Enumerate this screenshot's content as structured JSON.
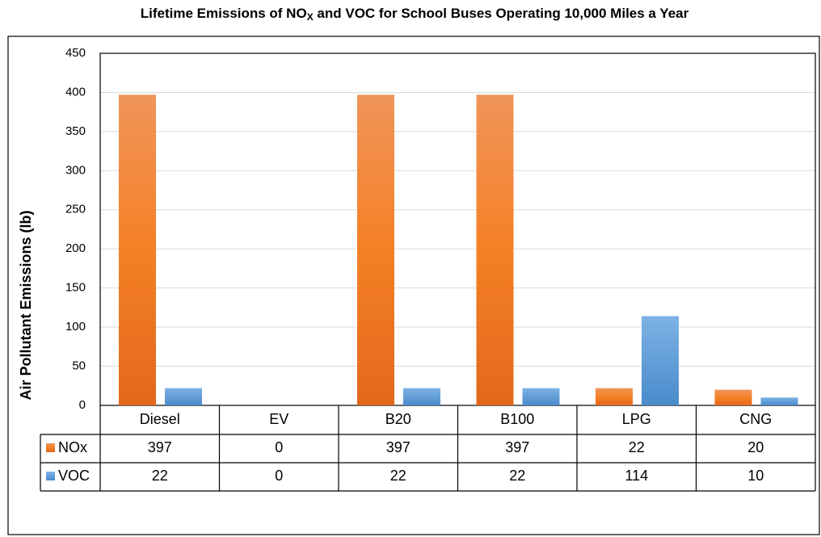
{
  "chart_data": {
    "type": "bar",
    "title": [
      "Lifetime Emissions of NO",
      "X",
      " and VOC for School Buses Operating 10,000 Miles a Year"
    ],
    "y_label": "Air Pollutant Emissions (lb)",
    "categories": [
      "Diesel",
      "EV",
      "B20",
      "B100",
      "LPG",
      "CNG"
    ],
    "series": [
      {
        "name": "NOx",
        "color": "#f07f2a",
        "values": [
          397,
          0,
          397,
          397,
          22,
          20
        ]
      },
      {
        "name": "VOC",
        "color": "#5b9bd5",
        "values": [
          22,
          0,
          22,
          22,
          114,
          10
        ]
      }
    ],
    "ylim": [
      0,
      450
    ],
    "yticks": [
      0,
      50,
      100,
      150,
      200,
      250,
      300,
      350,
      400,
      450
    ],
    "grid": true,
    "data_table": true
  }
}
